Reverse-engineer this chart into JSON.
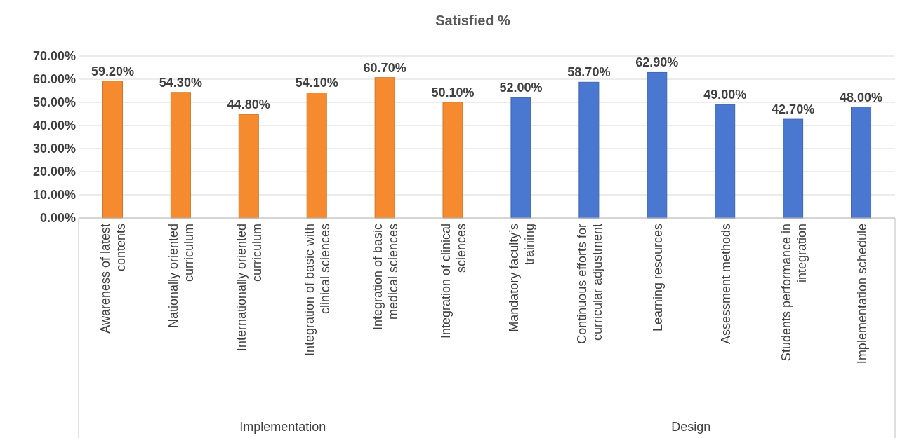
{
  "chart_data": {
    "type": "bar",
    "title": "Satisfied %",
    "categories": [
      "Awareness of latest contents",
      "Nationally oriented curriculum",
      "Internationally oriented curriculum",
      "Integration of basic with clinical sciences",
      "Integration of basic medical sciences",
      "Integration of clinical sciences",
      "Mandatory faculty’s training",
      "Continuous efforts for curricular adjustment",
      "Learning resources",
      "Assessment methods",
      "Students performance in integration",
      "Implementation schedule"
    ],
    "series": [
      {
        "color": "#f58a2e",
        "values": [
          59.2,
          54.3,
          44.8,
          54.1,
          60.7,
          50.1,
          null,
          null,
          null,
          null,
          null,
          null
        ],
        "value_labels": [
          "59.20%",
          "54.30%",
          "44.80%",
          "54.10%",
          "60.70%",
          "50.10%",
          null,
          null,
          null,
          null,
          null,
          null
        ]
      },
      {
        "color": "#4a78d0",
        "values": [
          null,
          null,
          null,
          null,
          null,
          null,
          52.0,
          58.7,
          62.9,
          49.0,
          42.7,
          48.0
        ],
        "value_labels": [
          null,
          null,
          null,
          null,
          null,
          null,
          "52.00%",
          "58.70%",
          "62.90%",
          "49.00%",
          "42.70%",
          "48.00%"
        ]
      }
    ],
    "annotations": [
      "Implementation",
      "Design"
    ],
    "ylim": [
      0,
      70
    ],
    "yticks": [
      {
        "value": 0,
        "label": "0.00%"
      },
      {
        "value": 10,
        "label": "10.00%"
      },
      {
        "value": 20,
        "label": "20.00%"
      },
      {
        "value": 30,
        "label": "30.00%"
      },
      {
        "value": 40,
        "label": "40.00%"
      },
      {
        "value": 50,
        "label": "50.00%"
      },
      {
        "value": 60,
        "label": "60.00%"
      },
      {
        "value": 70,
        "label": "70.00%"
      }
    ],
    "grid": true
  }
}
